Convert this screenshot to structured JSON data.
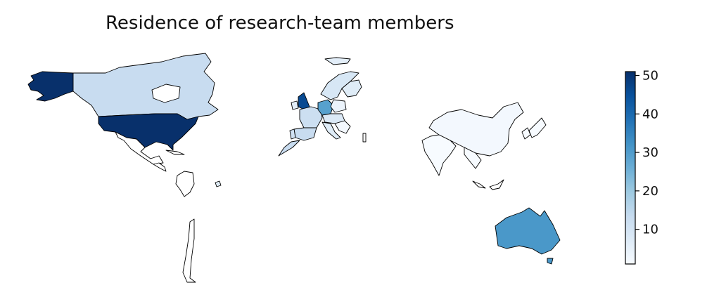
{
  "title": "Residence of research-team members",
  "colorbar": {
    "min": 1,
    "max": 51,
    "ticks": [
      {
        "value": 10,
        "label": "10"
      },
      {
        "value": 20,
        "label": "20"
      },
      {
        "value": 30,
        "label": "30"
      },
      {
        "value": 40,
        "label": "40"
      },
      {
        "value": 50,
        "label": "50"
      }
    ]
  },
  "colors": {
    "scale": [
      "#f7fbff",
      "#deebf7",
      "#c6dbef",
      "#9ecae1",
      "#6baed6",
      "#4292c6",
      "#2171b5",
      "#08519c",
      "#08306b"
    ],
    "zero": "#ffffff"
  },
  "regions": [
    {
      "id": "alaska",
      "value": 51
    },
    {
      "id": "canada",
      "value": 13
    },
    {
      "id": "usa",
      "value": 51
    },
    {
      "id": "mexico",
      "value": 0
    },
    {
      "id": "central-america",
      "value": 0
    },
    {
      "id": "cuba",
      "value": 0
    },
    {
      "id": "colombia",
      "value": 0
    },
    {
      "id": "trinidad",
      "value": 7
    },
    {
      "id": "chile",
      "value": 0
    },
    {
      "id": "ireland",
      "value": 6
    },
    {
      "id": "uk",
      "value": 46
    },
    {
      "id": "iceland",
      "value": 6
    },
    {
      "id": "scandinavia",
      "value": 9
    },
    {
      "id": "finland",
      "value": 7
    },
    {
      "id": "france",
      "value": 12
    },
    {
      "id": "spain",
      "value": 13
    },
    {
      "id": "portugal",
      "value": 11
    },
    {
      "id": "germany",
      "value": 29
    },
    {
      "id": "poland",
      "value": 4
    },
    {
      "id": "central-europe",
      "value": 8
    },
    {
      "id": "italy",
      "value": 7
    },
    {
      "id": "balkans",
      "value": 2
    },
    {
      "id": "china",
      "value": 2
    },
    {
      "id": "india",
      "value": 1
    },
    {
      "id": "southeast-asia",
      "value": 1
    },
    {
      "id": "japan",
      "value": 1
    },
    {
      "id": "korea",
      "value": 1
    },
    {
      "id": "indonesia",
      "value": 0
    },
    {
      "id": "malta",
      "value": 0
    },
    {
      "id": "australia",
      "value": 31
    },
    {
      "id": "tasmania",
      "value": 31
    }
  ]
}
